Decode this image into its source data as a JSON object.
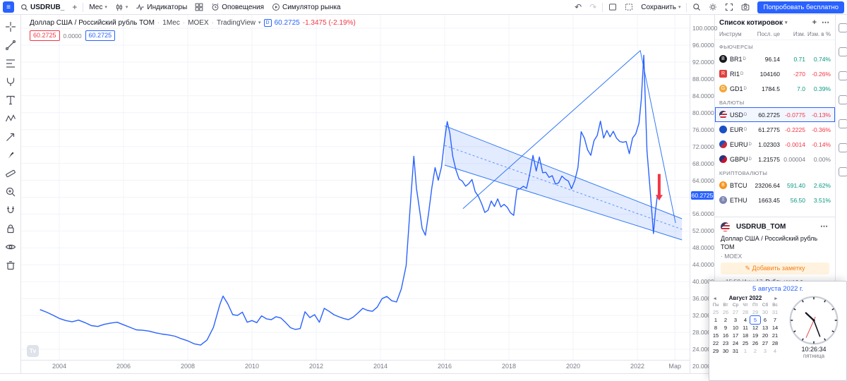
{
  "colors": {
    "accent": "#2962ff",
    "up": "#089981",
    "down": "#f23645",
    "flat": "#787b86"
  },
  "top_toolbar": {
    "symbol": "USDRUB_",
    "compare": "+",
    "interval": "Мес",
    "indicators_label": "Индикаторы",
    "alerts_label": "Оповещения",
    "replay_label": "Симулятор рынка",
    "save_label": "Сохранить",
    "cta_label": "Попробовать бесплатно",
    "undo": "↶",
    "redo": "↷"
  },
  "legend": {
    "title": "Доллар США / Российский рубль ТОМ",
    "interval": "1Мес",
    "exchange": "MOEX",
    "provider": "TradingView",
    "data_badge": "D",
    "last": "60.2725",
    "change": "-1.3475 (-2.19%)",
    "sell": "60.2725",
    "spread": "0.0000",
    "buy": "60.2725"
  },
  "chart_data": {
    "type": "line",
    "symbol": "USDRUB_TOM",
    "title": "Доллар США / Российский рубль ТОМ",
    "interval": "1Мес",
    "line_color": "#2962ff",
    "last_price": 60.2725,
    "ylim": [
      20,
      100
    ],
    "y_ticks": [
      100,
      96,
      92,
      88,
      84,
      80,
      76,
      72,
      68,
      64,
      56,
      52,
      48,
      44,
      40,
      36,
      32,
      28,
      24,
      20
    ],
    "x_ticks": [
      {
        "label": "2004",
        "year": 2004
      },
      {
        "label": "2006",
        "year": 2006
      },
      {
        "label": "2008",
        "year": 2008
      },
      {
        "label": "2010",
        "year": 2010
      },
      {
        "label": "2012",
        "year": 2012
      },
      {
        "label": "2014",
        "year": 2014
      },
      {
        "label": "2016",
        "year": 2016
      },
      {
        "label": "2018",
        "year": 2018
      },
      {
        "label": "2020",
        "year": 2020
      },
      {
        "label": "2022",
        "year": 2022
      },
      {
        "label": "Мар",
        "year": 2023.17
      }
    ],
    "series": [
      [
        2003.4,
        33.4
      ],
      [
        2003.6,
        32.8
      ],
      [
        2003.8,
        32.1
      ],
      [
        2004.0,
        31.3
      ],
      [
        2004.2,
        30.8
      ],
      [
        2004.4,
        30.5
      ],
      [
        2004.6,
        30.9
      ],
      [
        2004.8,
        30.3
      ],
      [
        2005.0,
        29.6
      ],
      [
        2005.2,
        29.4
      ],
      [
        2005.4,
        29.9
      ],
      [
        2005.6,
        30.2
      ],
      [
        2005.8,
        30.4
      ],
      [
        2006.0,
        29.8
      ],
      [
        2006.2,
        29.2
      ],
      [
        2006.4,
        28.6
      ],
      [
        2006.6,
        28.5
      ],
      [
        2006.8,
        28.3
      ],
      [
        2007.0,
        27.9
      ],
      [
        2007.2,
        27.6
      ],
      [
        2007.4,
        27.4
      ],
      [
        2007.6,
        27.1
      ],
      [
        2007.8,
        26.5
      ],
      [
        2008.0,
        26.0
      ],
      [
        2008.2,
        25.3
      ],
      [
        2008.4,
        25.0
      ],
      [
        2008.6,
        26.2
      ],
      [
        2008.8,
        29.2
      ],
      [
        2009.0,
        34.6
      ],
      [
        2009.1,
        36.6
      ],
      [
        2009.25,
        34.7
      ],
      [
        2009.4,
        32.2
      ],
      [
        2009.55,
        32.0
      ],
      [
        2009.7,
        32.8
      ],
      [
        2009.85,
        30.4
      ],
      [
        2010.0,
        30.8
      ],
      [
        2010.15,
        30.3
      ],
      [
        2010.3,
        31.9
      ],
      [
        2010.45,
        31.2
      ],
      [
        2010.6,
        31.0
      ],
      [
        2010.75,
        31.7
      ],
      [
        2010.9,
        31.4
      ],
      [
        2011.05,
        30.3
      ],
      [
        2011.2,
        29.1
      ],
      [
        2011.35,
        28.7
      ],
      [
        2011.5,
        28.9
      ],
      [
        2011.65,
        32.9
      ],
      [
        2011.8,
        31.5
      ],
      [
        2011.95,
        32.2
      ],
      [
        2012.1,
        30.4
      ],
      [
        2012.25,
        33.7
      ],
      [
        2012.4,
        33.0
      ],
      [
        2012.55,
        32.2
      ],
      [
        2012.7,
        31.7
      ],
      [
        2012.85,
        31.3
      ],
      [
        2013.0,
        31.0
      ],
      [
        2013.15,
        31.6
      ],
      [
        2013.3,
        32.6
      ],
      [
        2013.45,
        33.7
      ],
      [
        2013.6,
        33.2
      ],
      [
        2013.75,
        33.0
      ],
      [
        2013.9,
        34.0
      ],
      [
        2014.05,
        36.0
      ],
      [
        2014.2,
        36.5
      ],
      [
        2014.35,
        35.5
      ],
      [
        2014.5,
        35.2
      ],
      [
        2014.65,
        38.3
      ],
      [
        2014.8,
        43.8
      ],
      [
        2014.92,
        57.1
      ],
      [
        2015.04,
        69.7
      ],
      [
        2015.12,
        62.1
      ],
      [
        2015.2,
        58.0
      ],
      [
        2015.3,
        52.6
      ],
      [
        2015.4,
        51.0
      ],
      [
        2015.5,
        56.3
      ],
      [
        2015.6,
        62.2
      ],
      [
        2015.7,
        67.0
      ],
      [
        2015.8,
        64.0
      ],
      [
        2015.9,
        67.2
      ],
      [
        2016.0,
        73.7
      ],
      [
        2016.08,
        77.9
      ],
      [
        2016.16,
        75.2
      ],
      [
        2016.25,
        69.7
      ],
      [
        2016.35,
        66.5
      ],
      [
        2016.45,
        64.3
      ],
      [
        2016.55,
        63.8
      ],
      [
        2016.65,
        62.6
      ],
      [
        2016.75,
        63.2
      ],
      [
        2016.85,
        64.2
      ],
      [
        2016.95,
        61.3
      ],
      [
        2017.05,
        60.2
      ],
      [
        2017.15,
        58.5
      ],
      [
        2017.25,
        56.4
      ],
      [
        2017.35,
        56.9
      ],
      [
        2017.45,
        59.1
      ],
      [
        2017.55,
        57.8
      ],
      [
        2017.65,
        59.6
      ],
      [
        2017.75,
        57.7
      ],
      [
        2017.85,
        58.3
      ],
      [
        2017.95,
        57.6
      ],
      [
        2018.05,
        56.3
      ],
      [
        2018.15,
        55.7
      ],
      [
        2018.25,
        61.8
      ],
      [
        2018.35,
        62.0
      ],
      [
        2018.45,
        62.6
      ],
      [
        2018.55,
        62.1
      ],
      [
        2018.65,
        65.6
      ],
      [
        2018.75,
        69.9
      ],
      [
        2018.85,
        66.2
      ],
      [
        2018.95,
        69.5
      ],
      [
        2019.05,
        65.8
      ],
      [
        2019.15,
        65.9
      ],
      [
        2019.25,
        64.7
      ],
      [
        2019.35,
        65.1
      ],
      [
        2019.45,
        63.1
      ],
      [
        2019.55,
        63.4
      ],
      [
        2019.65,
        65.0
      ],
      [
        2019.75,
        64.3
      ],
      [
        2019.85,
        63.8
      ],
      [
        2019.95,
        62.0
      ],
      [
        2020.05,
        63.9
      ],
      [
        2020.15,
        67.0
      ],
      [
        2020.25,
        75.5
      ],
      [
        2020.35,
        74.0
      ],
      [
        2020.45,
        71.2
      ],
      [
        2020.55,
        69.9
      ],
      [
        2020.65,
        73.4
      ],
      [
        2020.75,
        74.6
      ],
      [
        2020.85,
        78.0
      ],
      [
        2020.95,
        74.0
      ],
      [
        2021.05,
        75.8
      ],
      [
        2021.15,
        74.3
      ],
      [
        2021.25,
        75.6
      ],
      [
        2021.35,
        74.0
      ],
      [
        2021.45,
        73.2
      ],
      [
        2021.55,
        73.0
      ],
      [
        2021.65,
        73.2
      ],
      [
        2021.75,
        70.3
      ],
      [
        2021.85,
        74.0
      ],
      [
        2021.95,
        75.0
      ],
      [
        2022.05,
        77.5
      ],
      [
        2022.12,
        83.0
      ],
      [
        2022.2,
        93.6
      ],
      [
        2022.3,
        71.0
      ],
      [
        2022.4,
        61.5
      ],
      [
        2022.5,
        51.4
      ],
      [
        2022.56,
        56.5
      ],
      [
        2022.62,
        60.27
      ]
    ],
    "drawings": {
      "channel": {
        "x1": 2016.0,
        "x2": 2023.39,
        "top": [
          76.9,
          54.9
        ],
        "bottom": [
          67.6,
          49.9
        ],
        "fill": "rgba(41,98,255,0.13)",
        "stroke": "#3179f5"
      },
      "trendlines": [
        [
          2016.57,
          57.3
        ],
        [
          2022.09,
          94.7
        ],
        [
          2023.19,
          53.9
        ]
      ],
      "arrow": {
        "x": 2022.68,
        "from": 65.5,
        "to": 59.2,
        "color": "#f23645"
      }
    }
  },
  "watchlist": {
    "title": "Список котировок",
    "columns": [
      "Инструм",
      "Посл. це",
      "Изм.",
      "Изм. в %"
    ],
    "sections": [
      {
        "label": "ФЬЮЧЕРСЫ",
        "rows": [
          {
            "ticker": "BR1",
            "badge": "D",
            "icon_name": "brent-oil-icon",
            "icon_class": "ic-br",
            "icon_glyph": "B",
            "price": "96.14",
            "change": "0.71",
            "change_pct": "0.74%",
            "dir": "up"
          },
          {
            "ticker": "RI1",
            "badge": "D",
            "icon_name": "rts-index-icon",
            "icon_class": "ic-ri",
            "icon_glyph": "R",
            "price": "104160",
            "change": "-270",
            "change_pct": "-0.26%",
            "dir": "down"
          },
          {
            "ticker": "GD1",
            "badge": "D",
            "icon_name": "gold-icon",
            "icon_class": "ic-gd",
            "icon_glyph": "G",
            "price": "1784.5",
            "change": "7.0",
            "change_pct": "0.39%",
            "dir": "up"
          }
        ]
      },
      {
        "label": "ВАЛЮТЫ",
        "rows": [
          {
            "ticker": "USD",
            "badge": "D",
            "icon_name": "us-flag-icon",
            "icon_class": "ic-usd",
            "icon_glyph": "",
            "price": "60.2725",
            "change": "-0.0775",
            "change_pct": "-0.13%",
            "dir": "down",
            "selected": true
          },
          {
            "ticker": "EUR",
            "badge": "D",
            "icon_name": "eu-flag-icon",
            "icon_class": "ic-eur",
            "icon_glyph": "",
            "price": "61.2775",
            "change": "-0.2225",
            "change_pct": "-0.36%",
            "dir": "down"
          },
          {
            "ticker": "EURU",
            "badge": "D",
            "icon_name": "eurusd-pair-icon",
            "icon_class": "ic-eurusd",
            "icon_glyph": "",
            "price": "1.02303",
            "change": "-0.0014",
            "change_pct": "-0.14%",
            "dir": "down"
          },
          {
            "ticker": "GBPU",
            "badge": "D",
            "icon_name": "gbpusd-pair-icon",
            "icon_class": "ic-gbp",
            "icon_glyph": "",
            "price": "1.21575",
            "change": "0.00004",
            "change_pct": "0.00%",
            "dir": "flat"
          }
        ]
      },
      {
        "label": "КРИПТОВАЛЮТЫ",
        "rows": [
          {
            "ticker": "BTCU",
            "badge": "",
            "icon_name": "bitcoin-icon",
            "icon_class": "ic-btc",
            "icon_glyph": "B",
            "price": "23206.64",
            "change": "591.40",
            "change_pct": "2.62%",
            "dir": "up"
          },
          {
            "ticker": "ETHU",
            "badge": "",
            "icon_name": "ethereum-icon",
            "icon_class": "ic-eth",
            "icon_glyph": "Ξ",
            "price": "1663.45",
            "change": "56.50",
            "change_pct": "3.51%",
            "dir": "up"
          }
        ]
      }
    ]
  },
  "symbol_panel": {
    "name": "USDRUB_TOM",
    "description": "Доллар США / Российский рубль ТОМ",
    "exchange": "· MOEX",
    "add_note_label": "Добавить заметку",
    "news_time": "15:59 Июн 17",
    "news_title": "Рубль ушел в..."
  },
  "popup": {
    "date_label": "5 августа 2022 г.",
    "calendar": {
      "month_label": "Август 2022",
      "dow": [
        "Пн",
        "Вт",
        "Ср",
        "Чт",
        "Пт",
        "Сб",
        "Вс"
      ],
      "weeks": [
        [
          "25",
          "26",
          "27",
          "28",
          "29",
          "30",
          "31"
        ],
        [
          "1",
          "2",
          "3",
          "4",
          "5",
          "6",
          "7"
        ],
        [
          "8",
          "9",
          "10",
          "11",
          "12",
          "13",
          "14"
        ],
        [
          "15",
          "16",
          "17",
          "18",
          "19",
          "20",
          "21"
        ],
        [
          "22",
          "23",
          "24",
          "25",
          "26",
          "27",
          "28"
        ],
        [
          "29",
          "30",
          "31",
          "1",
          "2",
          "3",
          "4"
        ]
      ],
      "selected_day": "5"
    },
    "time": "10:26:34",
    "weekday": "пятница",
    "time_parts": {
      "h": 10,
      "m": 26,
      "s": 34
    }
  }
}
